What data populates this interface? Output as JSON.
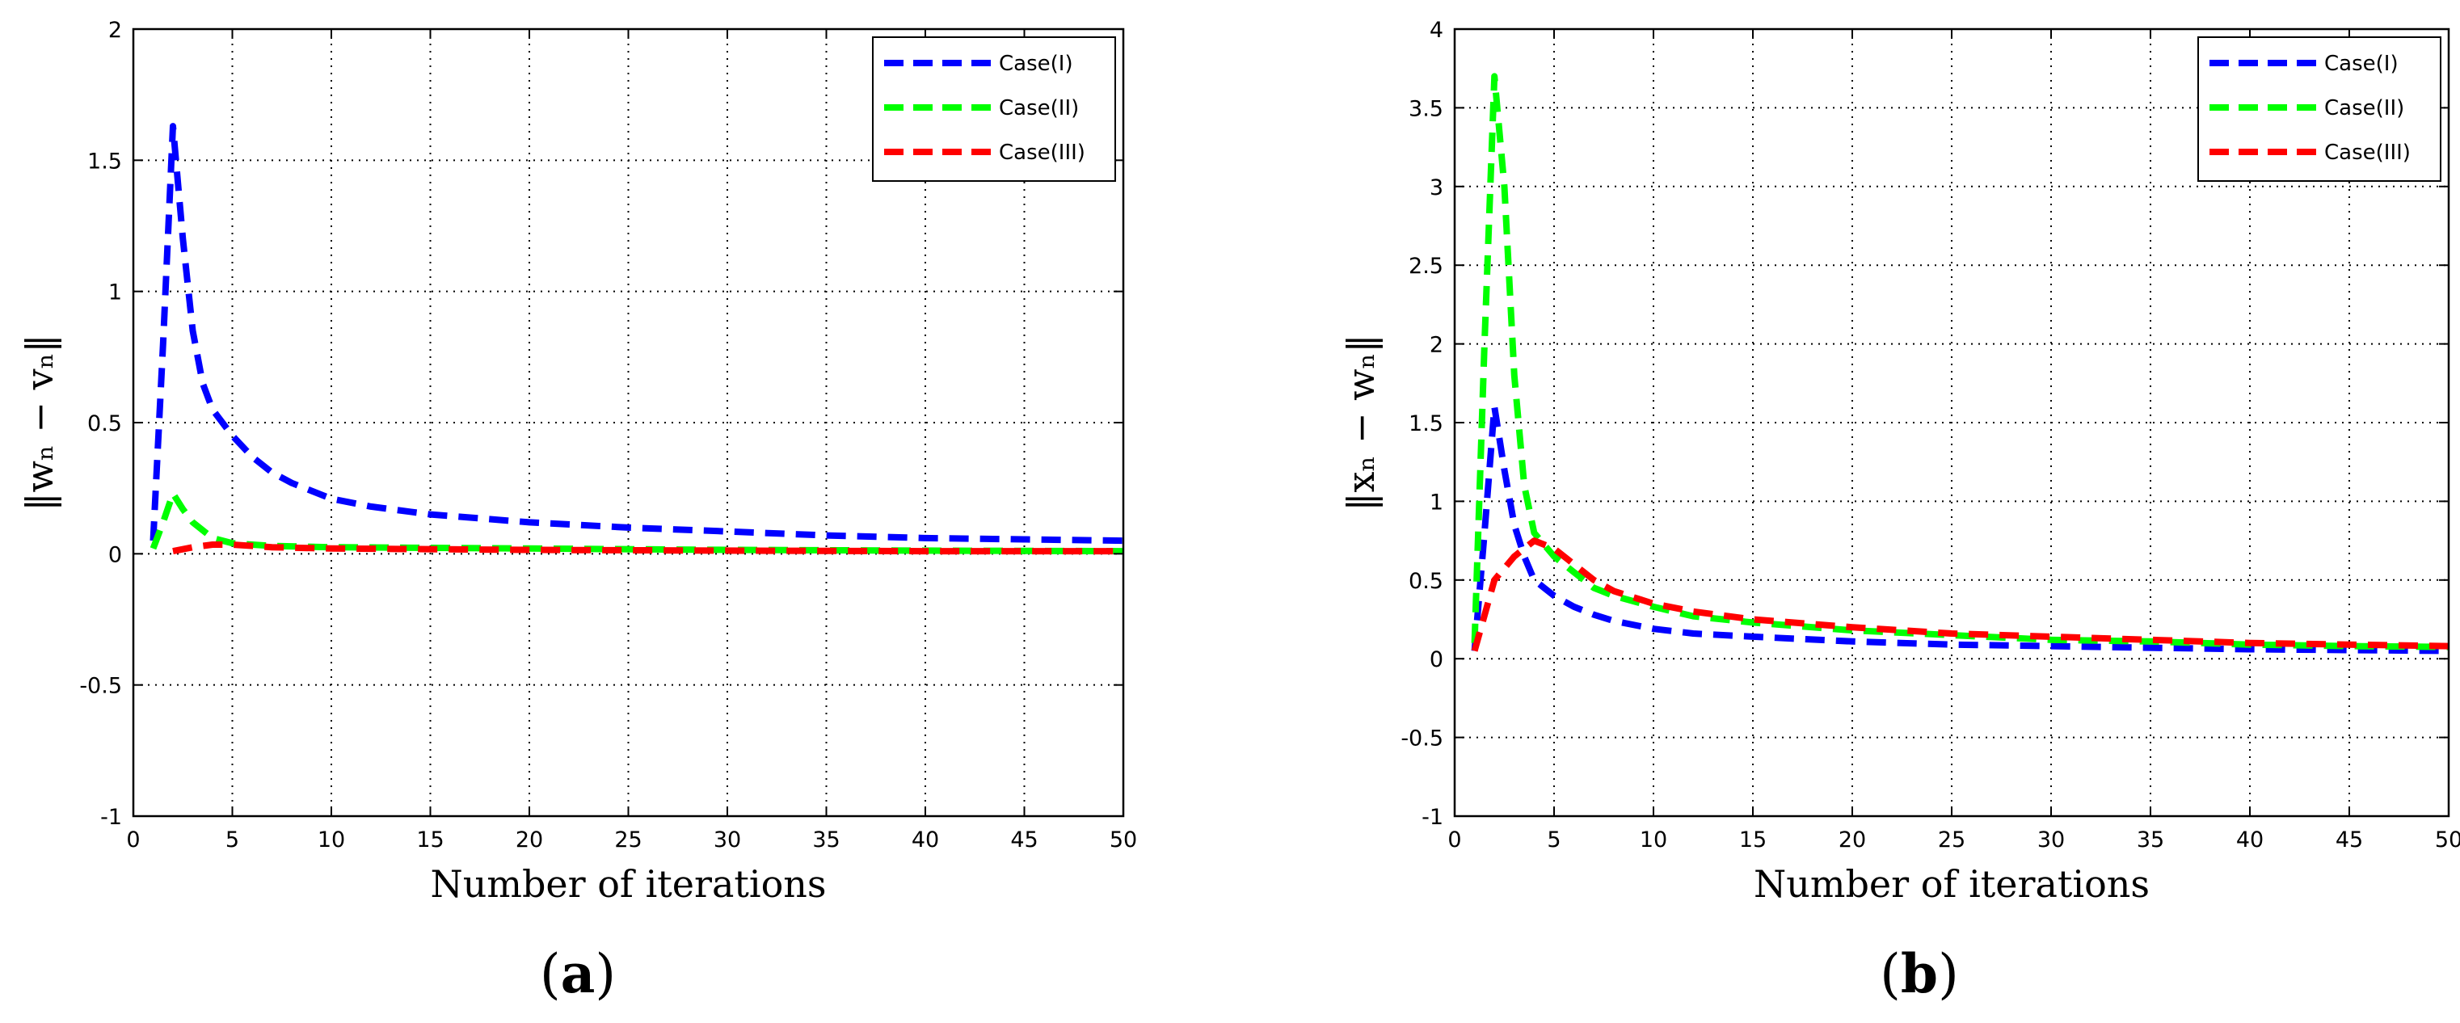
{
  "chart_data": [
    {
      "type": "line",
      "panel": "a",
      "panel_label": "(a)",
      "panel_letter": "a",
      "xlabel": "Number of iterations",
      "ylabel": "‖wₙ − vₙ‖",
      "xlim": [
        0,
        50
      ],
      "ylim": [
        -1,
        2
      ],
      "xticks": [
        0,
        5,
        10,
        15,
        20,
        25,
        30,
        35,
        40,
        45,
        50
      ],
      "yticks": [
        -1,
        -0.5,
        0,
        0.5,
        1,
        1.5,
        2
      ],
      "ytick_labels": [
        "-1",
        "-0.5",
        "0",
        "0.5",
        "1",
        "1.5",
        "2"
      ],
      "grid": true,
      "legend_position": "top-right",
      "series": [
        {
          "name": "Case(I)",
          "color": "#0000ff",
          "points": [
            [
              1,
              0.05
            ],
            [
              1.5,
              0.8
            ],
            [
              2,
              1.63
            ],
            [
              2.5,
              1.2
            ],
            [
              3,
              0.85
            ],
            [
              3.5,
              0.65
            ],
            [
              4,
              0.55
            ],
            [
              5,
              0.45
            ],
            [
              6,
              0.37
            ],
            [
              7,
              0.31
            ],
            [
              8,
              0.27
            ],
            [
              10,
              0.21
            ],
            [
              12,
              0.18
            ],
            [
              15,
              0.15
            ],
            [
              20,
              0.12
            ],
            [
              25,
              0.1
            ],
            [
              30,
              0.085
            ],
            [
              35,
              0.07
            ],
            [
              40,
              0.06
            ],
            [
              45,
              0.055
            ],
            [
              50,
              0.05
            ]
          ]
        },
        {
          "name": "Case(II)",
          "color": "#00ff00",
          "points": [
            [
              1,
              0.02
            ],
            [
              1.5,
              0.12
            ],
            [
              2,
              0.23
            ],
            [
              2.5,
              0.17
            ],
            [
              3,
              0.12
            ],
            [
              4,
              0.06
            ],
            [
              5,
              0.04
            ],
            [
              7,
              0.03
            ],
            [
              10,
              0.025
            ],
            [
              20,
              0.02
            ],
            [
              30,
              0.015
            ],
            [
              40,
              0.012
            ],
            [
              50,
              0.01
            ]
          ]
        },
        {
          "name": "Case(III)",
          "color": "#ff0000",
          "points": [
            [
              2,
              0.01
            ],
            [
              3,
              0.025
            ],
            [
              4,
              0.035
            ],
            [
              5,
              0.035
            ],
            [
              7,
              0.025
            ],
            [
              10,
              0.02
            ],
            [
              20,
              0.015
            ],
            [
              30,
              0.012
            ],
            [
              40,
              0.01
            ],
            [
              50,
              0.01
            ]
          ]
        }
      ]
    },
    {
      "type": "line",
      "panel": "b",
      "panel_label": "(b)",
      "panel_letter": "b",
      "xlabel": "Number of iterations",
      "ylabel": "‖xₙ − wₙ‖",
      "xlim": [
        0,
        50
      ],
      "ylim": [
        -1,
        4
      ],
      "xticks": [
        0,
        5,
        10,
        15,
        20,
        25,
        30,
        35,
        40,
        45,
        50
      ],
      "yticks": [
        -1,
        -0.5,
        0,
        0.5,
        1,
        1.5,
        2,
        2.5,
        3,
        3.5,
        4
      ],
      "ytick_labels": [
        "-1",
        "-0.5",
        "0",
        "0.5",
        "1",
        "1.5",
        "2",
        "2.5",
        "3",
        "3.5",
        "4"
      ],
      "grid": true,
      "legend_position": "top-right",
      "series": [
        {
          "name": "Case(I)",
          "color": "#0000ff",
          "points": [
            [
              1,
              0.05
            ],
            [
              1.5,
              0.8
            ],
            [
              2,
              1.6
            ],
            [
              2.5,
              1.2
            ],
            [
              3,
              0.85
            ],
            [
              3.5,
              0.65
            ],
            [
              4,
              0.5
            ],
            [
              5,
              0.4
            ],
            [
              6,
              0.33
            ],
            [
              7,
              0.28
            ],
            [
              8,
              0.24
            ],
            [
              10,
              0.19
            ],
            [
              12,
              0.16
            ],
            [
              15,
              0.14
            ],
            [
              20,
              0.11
            ],
            [
              25,
              0.09
            ],
            [
              30,
              0.08
            ],
            [
              35,
              0.07
            ],
            [
              40,
              0.06
            ],
            [
              45,
              0.055
            ],
            [
              50,
              0.05
            ]
          ]
        },
        {
          "name": "Case(II)",
          "color": "#00ff00",
          "points": [
            [
              1,
              0.1
            ],
            [
              1.5,
              2.0
            ],
            [
              2,
              3.7
            ],
            [
              2.5,
              3.0
            ],
            [
              3,
              1.8
            ],
            [
              3.5,
              1.1
            ],
            [
              4,
              0.8
            ],
            [
              5,
              0.65
            ],
            [
              6,
              0.55
            ],
            [
              7,
              0.45
            ],
            [
              8,
              0.4
            ],
            [
              10,
              0.33
            ],
            [
              12,
              0.27
            ],
            [
              15,
              0.23
            ],
            [
              20,
              0.18
            ],
            [
              25,
              0.15
            ],
            [
              30,
              0.12
            ],
            [
              35,
              0.11
            ],
            [
              40,
              0.09
            ],
            [
              45,
              0.08
            ],
            [
              50,
              0.075
            ]
          ]
        },
        {
          "name": "Case(III)",
          "color": "#ff0000",
          "points": [
            [
              1,
              0.05
            ],
            [
              2,
              0.5
            ],
            [
              3,
              0.65
            ],
            [
              4,
              0.75
            ],
            [
              5,
              0.7
            ],
            [
              6,
              0.6
            ],
            [
              7,
              0.5
            ],
            [
              8,
              0.43
            ],
            [
              10,
              0.35
            ],
            [
              12,
              0.3
            ],
            [
              15,
              0.25
            ],
            [
              20,
              0.2
            ],
            [
              25,
              0.16
            ],
            [
              30,
              0.14
            ],
            [
              35,
              0.12
            ],
            [
              40,
              0.1
            ],
            [
              45,
              0.09
            ],
            [
              50,
              0.08
            ]
          ]
        }
      ]
    }
  ]
}
